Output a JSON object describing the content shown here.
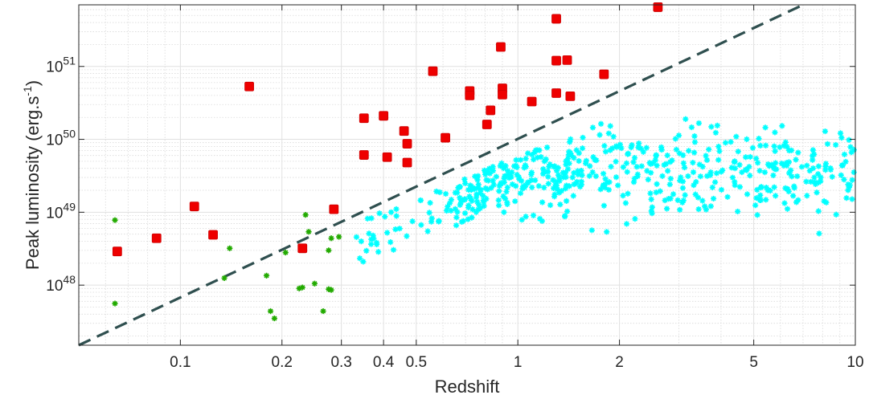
{
  "chart_data": {
    "type": "scatter",
    "title": "",
    "xlabel": "Redshift",
    "ylabel": "Peak luminosity (erg.s",
    "ylabel_sup": "-1",
    "ylabel_close": ")",
    "xscale": "log",
    "yscale": "log",
    "xlim": [
      0.05,
      10
    ],
    "ylim": [
      1.5e+47,
      7e+51
    ],
    "grid": true,
    "legend": "none",
    "x_ticks": [
      {
        "value": 0.1,
        "label": "0.1"
      },
      {
        "value": 0.2,
        "label": "0.2"
      },
      {
        "value": 0.3,
        "label": "0.3"
      },
      {
        "value": 0.4,
        "label": "0.4"
      },
      {
        "value": 0.5,
        "label": "0.5"
      },
      {
        "value": 1,
        "label": "1"
      },
      {
        "value": 2,
        "label": "2"
      },
      {
        "value": 5,
        "label": "5"
      },
      {
        "value": 10,
        "label": "10"
      }
    ],
    "y_ticks": [
      {
        "value": 1e+48,
        "base": "10",
        "exp": "48"
      },
      {
        "value": 1e+49,
        "base": "10",
        "exp": "49"
      },
      {
        "value": 1e+50,
        "base": "10",
        "exp": "50"
      },
      {
        "value": 1e+51,
        "base": "10",
        "exp": "51"
      }
    ],
    "threshold_line": {
      "style": "dashed",
      "color": "#2f4f4f",
      "points": [
        [
          0.05,
          1.5e+47
        ],
        [
          7.0,
          7e+51
        ]
      ]
    },
    "series": [
      {
        "marker": "square",
        "color": "#ee0000",
        "points": [
          [
            0.065,
            2.9e+48
          ],
          [
            0.085,
            4.4e+48
          ],
          [
            0.11,
            1.2e+49
          ],
          [
            0.125,
            4.9e+48
          ],
          [
            0.16,
            5.3e+50
          ],
          [
            0.23,
            3.2e+48
          ],
          [
            0.285,
            1.1e+49
          ],
          [
            0.35,
            1.95e+50
          ],
          [
            0.35,
            6.1e+49
          ],
          [
            0.4,
            2.1e+50
          ],
          [
            0.41,
            5.7e+49
          ],
          [
            0.46,
            1.3e+50
          ],
          [
            0.47,
            8.7e+49
          ],
          [
            0.47,
            4.8e+49
          ],
          [
            0.56,
            8.6e+50
          ],
          [
            0.61,
            1.05e+50
          ],
          [
            0.72,
            4.6e+50
          ],
          [
            0.72,
            4e+50
          ],
          [
            0.81,
            1.6e+50
          ],
          [
            0.83,
            2.5e+50
          ],
          [
            0.89,
            1.85e+51
          ],
          [
            0.9,
            5e+50
          ],
          [
            0.9,
            4.1e+50
          ],
          [
            1.1,
            3.3e+50
          ],
          [
            1.3,
            4.5e+51
          ],
          [
            1.3,
            1.2e+51
          ],
          [
            1.3,
            4.3e+50
          ],
          [
            1.4,
            1.22e+51
          ],
          [
            1.43,
            3.9e+50
          ],
          [
            1.8,
            7.8e+50
          ],
          [
            2.6,
            6.5e+51
          ]
        ]
      },
      {
        "marker": "asterisk",
        "color": "#22aa00",
        "points": [
          [
            0.064,
            7.8e+48
          ],
          [
            0.064,
            5.6e+47
          ],
          [
            0.135,
            1.25e+48
          ],
          [
            0.14,
            3.2e+48
          ],
          [
            0.18,
            1.35e+48
          ],
          [
            0.185,
            4.4e+47
          ],
          [
            0.19,
            3.5e+47
          ],
          [
            0.205,
            2.8e+48
          ],
          [
            0.225,
            9e+47
          ],
          [
            0.23,
            9.3e+47
          ],
          [
            0.235,
            9.2e+48
          ],
          [
            0.24,
            5.4e+48
          ],
          [
            0.25,
            1.05e+48
          ],
          [
            0.265,
            4.4e+47
          ],
          [
            0.275,
            3e+48
          ],
          [
            0.275,
            8.8e+47
          ],
          [
            0.28,
            4.4e+48
          ],
          [
            0.28,
            8.6e+47
          ],
          [
            0.295,
            4.6e+48
          ]
        ]
      },
      {
        "marker": "asterisk",
        "color": "#00ffff",
        "generated": true,
        "seed": 20240517,
        "count": 560,
        "x_range": [
          0.33,
          10
        ],
        "y_range": [
          2.2e+47,
          4e+51
        ]
      }
    ]
  }
}
